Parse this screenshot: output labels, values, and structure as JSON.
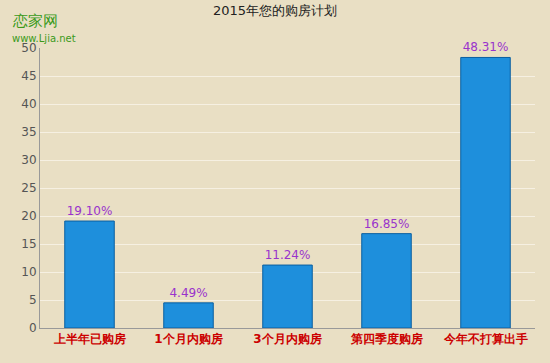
{
  "chart_data": {
    "type": "bar",
    "title": "2015年您的购房计划",
    "categories": [
      "上半年已购房",
      "1个月内购房",
      "3个月内购房",
      "第四季度购房",
      "今年不打算出手"
    ],
    "values": [
      19.1,
      4.49,
      11.24,
      16.85,
      48.31
    ],
    "value_labels": [
      "19.10%",
      "4.49%",
      "11.24%",
      "16.85%",
      "48.31%"
    ],
    "data_labels": true,
    "color": "#1e8fdc",
    "ylim": [
      0,
      50
    ],
    "yticks": [
      0,
      5,
      10,
      15,
      20,
      25,
      30,
      35,
      40,
      45,
      50
    ],
    "grid": true,
    "annotations": [
      "恋家网",
      "www.Ljia.net"
    ]
  }
}
